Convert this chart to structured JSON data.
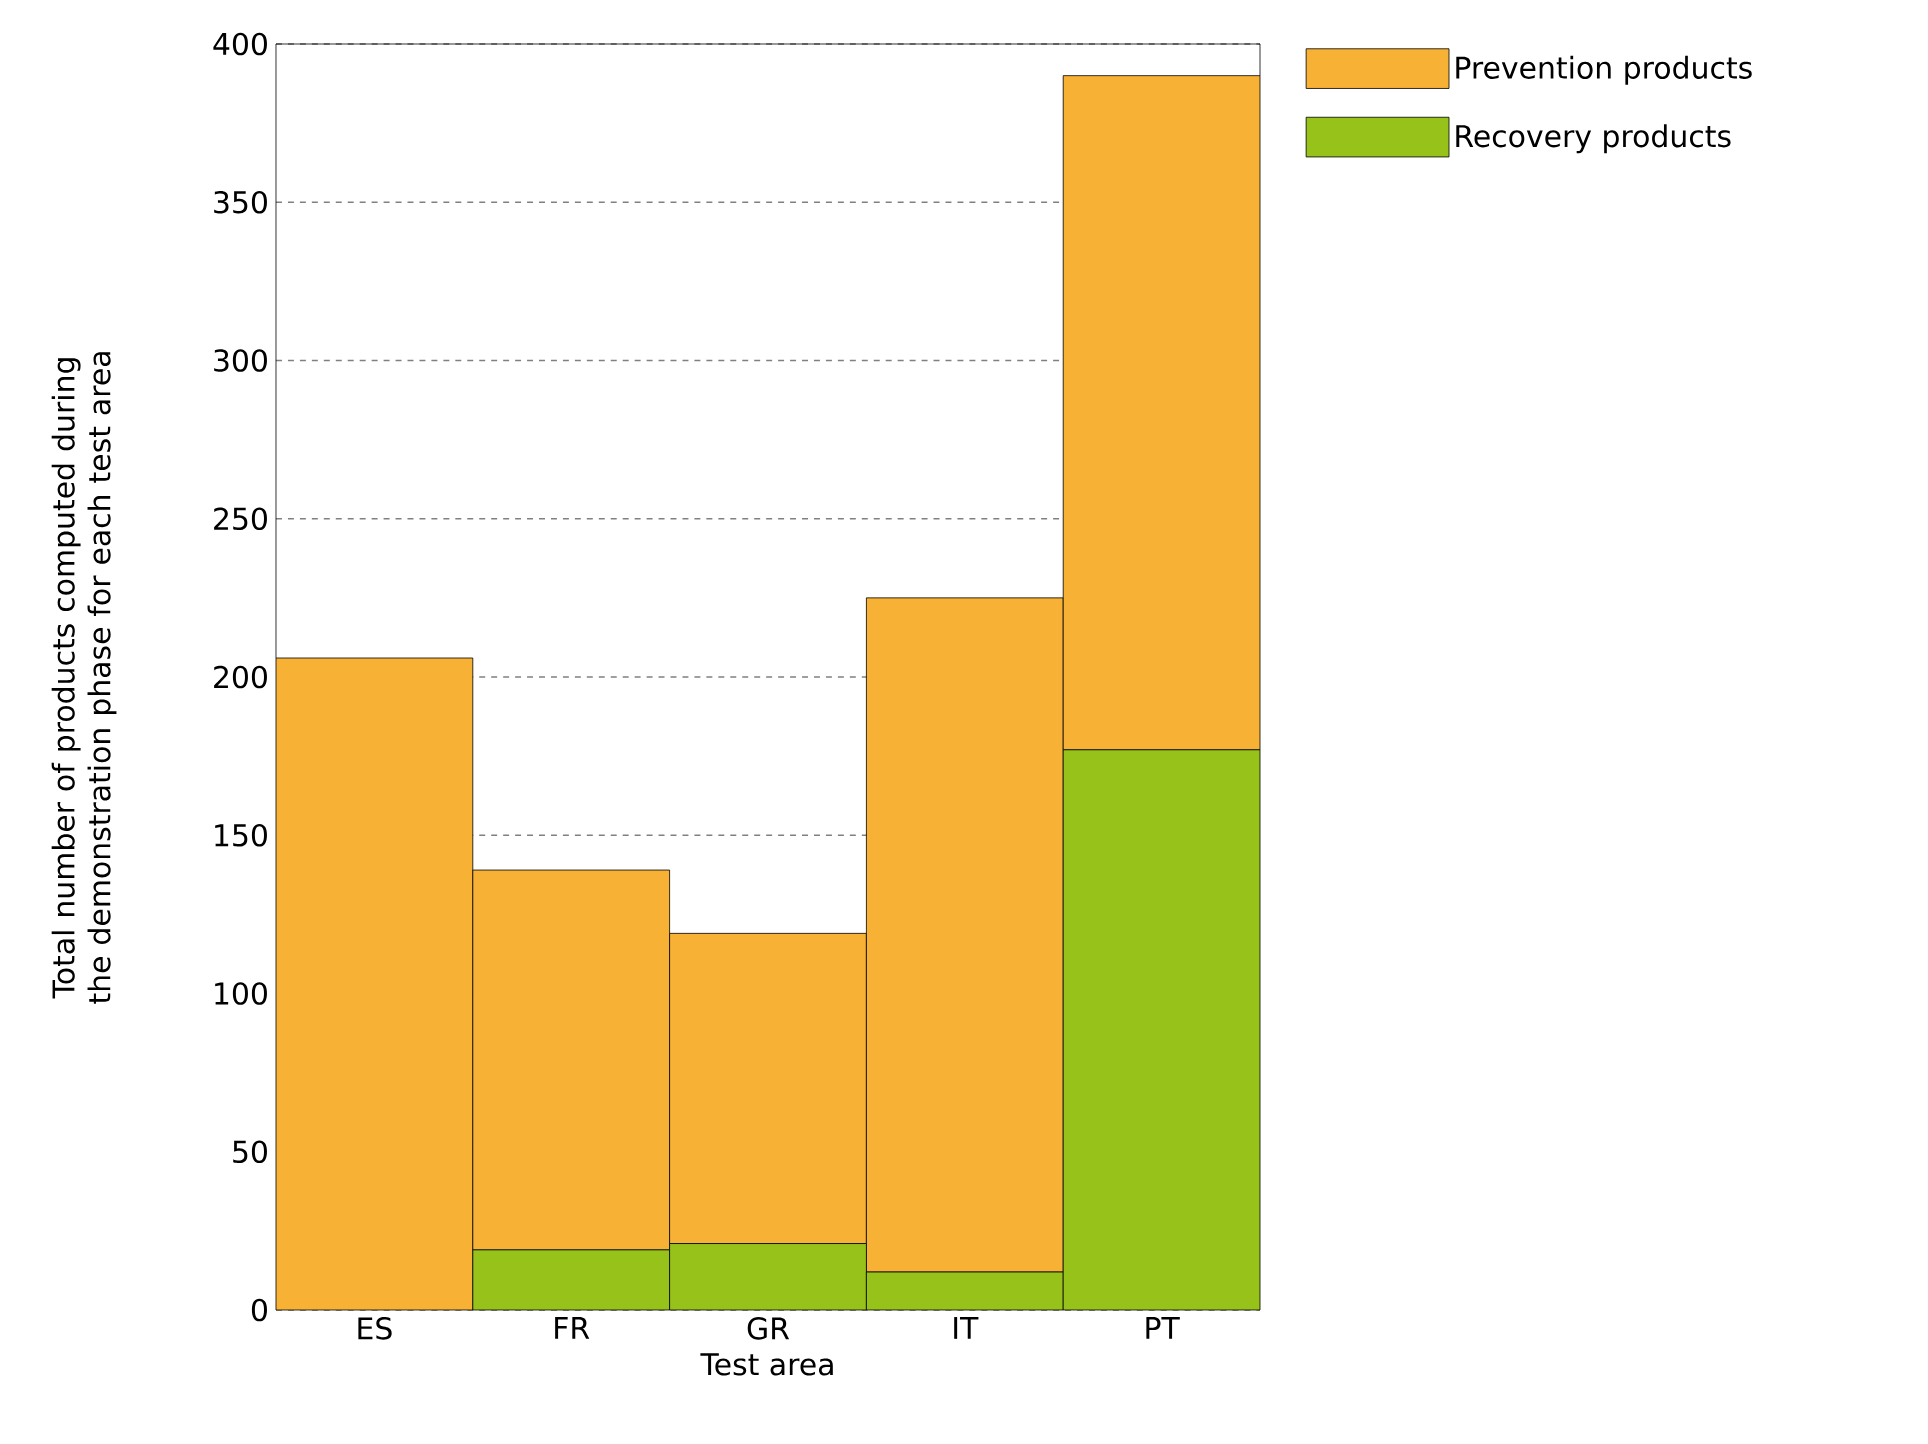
{
  "chart_data": {
    "type": "bar",
    "stacked": true,
    "xlabel": "Test area",
    "ylabel": "Total number of products computed during the demonstration phase for each test area",
    "categories": [
      "ES",
      "FR",
      "GR",
      "IT",
      "PT"
    ],
    "series": [
      {
        "name": "Recovery products",
        "color": "#97c21a",
        "values": [
          0,
          19,
          21,
          12,
          177
        ]
      },
      {
        "name": "Prevention products",
        "color": "#f7b236",
        "values": [
          206,
          120,
          98,
          213,
          213
        ]
      }
    ],
    "ylim": [
      0,
      400
    ],
    "yticks": [
      0,
      50,
      100,
      150,
      200,
      250,
      300,
      350,
      400
    ],
    "grid": "y",
    "legend": "top right"
  }
}
